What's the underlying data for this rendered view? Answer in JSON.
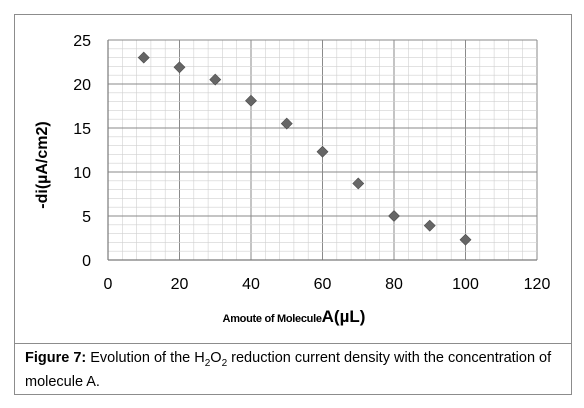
{
  "chart_data": {
    "type": "scatter",
    "x": [
      10,
      20,
      30,
      40,
      50,
      60,
      70,
      80,
      90,
      100
    ],
    "y": [
      23.0,
      21.9,
      20.5,
      18.1,
      15.5,
      12.3,
      8.7,
      5.0,
      3.9,
      2.3
    ],
    "xlim": [
      0,
      120
    ],
    "ylim": [
      0,
      25
    ],
    "x_ticks": [
      "0",
      "20",
      "40",
      "60",
      "80",
      "100",
      "120"
    ],
    "y_ticks": [
      "0",
      "5",
      "10",
      "15",
      "20",
      "25"
    ],
    "ylabel": "-di(µA/cm2)",
    "xlabel_small": "Amoute of Molecule",
    "xlabel_big": "A(µL)",
    "grid": true,
    "marker": "diamond",
    "marker_color": "#666666"
  },
  "caption": {
    "figure_label": "Figure 7:",
    "text_before_sub": " Evolution of the H",
    "sub1": "2",
    "mid": "O",
    "sub2": "2",
    "text_after": " reduction current density with the concentration of molecule A."
  }
}
